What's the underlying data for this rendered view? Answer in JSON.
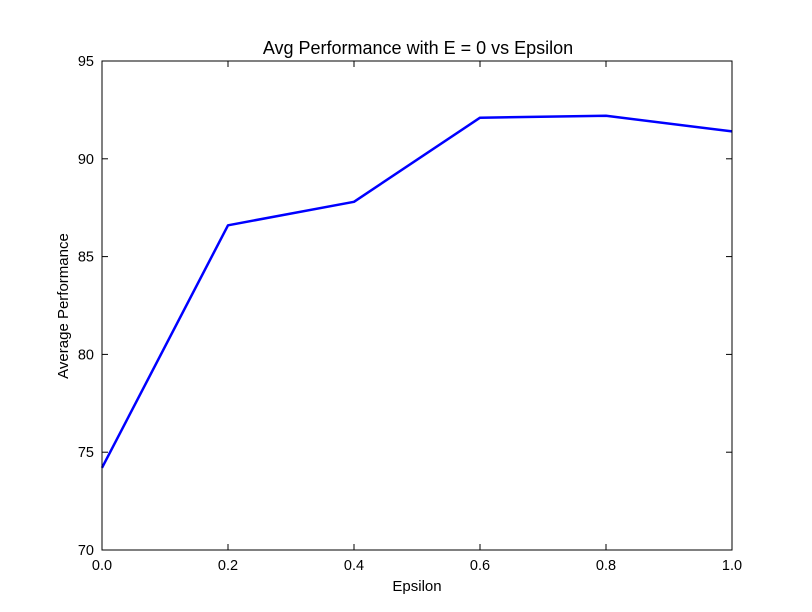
{
  "chart_data": {
    "type": "line",
    "title": "Avg Performance with E = 0 vs Epsilon",
    "xlabel": "Epsilon",
    "ylabel": "Average Performance",
    "xlim": [
      0.0,
      1.0
    ],
    "ylim": [
      70,
      95
    ],
    "xticks": [
      "0.0",
      "0.2",
      "0.4",
      "0.6",
      "0.8",
      "1.0"
    ],
    "yticks": [
      "70",
      "75",
      "80",
      "85",
      "90",
      "95"
    ],
    "grid": false,
    "legend": "none",
    "series": [
      {
        "color": "#0000ff",
        "x": [
          0.0,
          0.2,
          0.4,
          0.6,
          0.8,
          1.0
        ],
        "y": [
          74.2,
          86.6,
          87.8,
          92.1,
          92.2,
          91.4
        ]
      }
    ]
  }
}
